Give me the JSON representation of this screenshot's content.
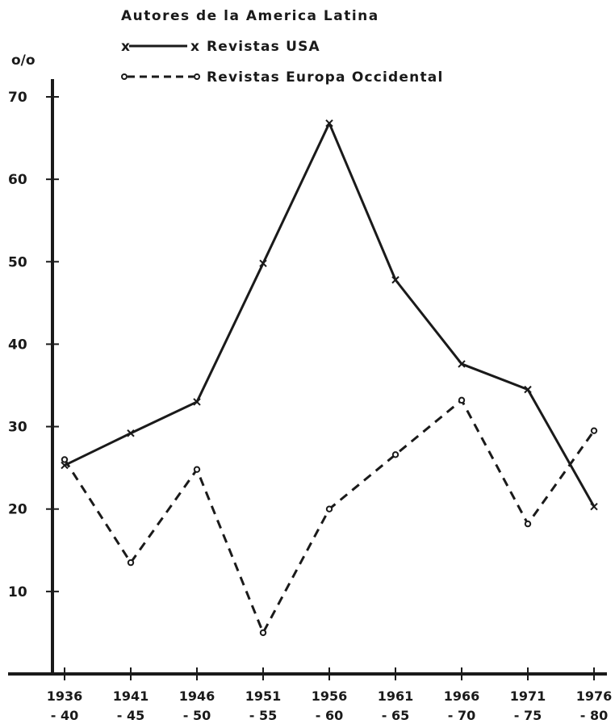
{
  "chart_data": {
    "type": "line",
    "title": "Autores de la America Latina",
    "ylabel": "o/o",
    "xlabel": "",
    "ylim": [
      0,
      70
    ],
    "yticks": [
      10,
      20,
      30,
      40,
      50,
      60,
      70
    ],
    "grid": false,
    "legend_position": "top-left",
    "categories": [
      {
        "top": "1936",
        "bottom": "- 40"
      },
      {
        "top": "1941",
        "bottom": "- 45"
      },
      {
        "top": "1946",
        "bottom": "- 50"
      },
      {
        "top": "1951",
        "bottom": "- 55"
      },
      {
        "top": "1956",
        "bottom": "- 60"
      },
      {
        "top": "1961",
        "bottom": "- 65"
      },
      {
        "top": "1966",
        "bottom": "- 70"
      },
      {
        "top": "1971",
        "bottom": "- 75"
      },
      {
        "top": "1976",
        "bottom": "- 80"
      }
    ],
    "series": [
      {
        "name": "Revistas USA",
        "legend_marker": "x",
        "line_style": "solid",
        "marker": "x",
        "values": [
          25.3,
          29.2,
          33.0,
          49.8,
          66.8,
          47.8,
          37.6,
          34.5,
          20.3
        ]
      },
      {
        "name": "Revistas Europa Occidental",
        "legend_marker": "o",
        "line_style": "dashed",
        "marker": "o",
        "values": [
          26.0,
          13.5,
          24.8,
          5.0,
          20.0,
          26.6,
          33.2,
          18.2,
          29.5
        ]
      }
    ],
    "colors": {
      "ink": "#1a1a1a",
      "background": "#ffffff"
    }
  }
}
